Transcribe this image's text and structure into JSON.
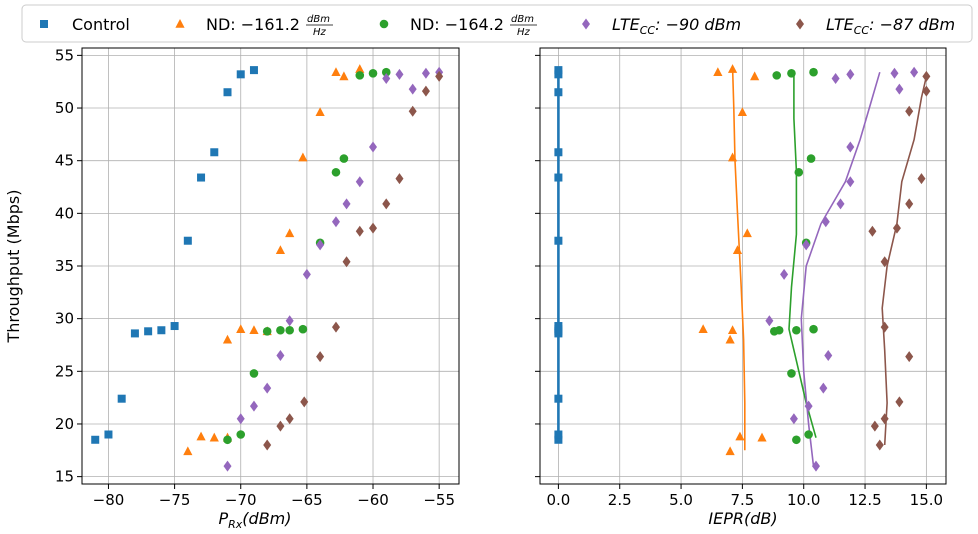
{
  "chart_data": [
    {
      "type": "scatter",
      "panel": "left",
      "xlabel_base": "P",
      "xlabel_sub": "Rx",
      "xlabel_unit": "(dBm)",
      "ylabel": "Throughput (Mbps)",
      "xlim": [
        -82,
        -53.5
      ],
      "ylim": [
        14.3,
        55.7
      ],
      "xticks": [
        -80,
        -75,
        -70,
        -65,
        -60,
        -55
      ],
      "xtick_labels": [
        "−80",
        "−75",
        "−70",
        "−65",
        "−60",
        "−55"
      ],
      "yticks": [
        15,
        20,
        25,
        30,
        35,
        40,
        45,
        50,
        55
      ],
      "ytick_labels": [
        "15",
        "20",
        "25",
        "30",
        "35",
        "40",
        "45",
        "50",
        "55"
      ],
      "grid": true,
      "series": [
        {
          "id": "control",
          "marker": "square",
          "color": "#1f77b4",
          "points": [
            [
              -81,
              18.5
            ],
            [
              -80,
              19.0
            ],
            [
              -79,
              22.4
            ],
            [
              -78,
              28.6
            ],
            [
              -77,
              28.8
            ],
            [
              -76,
              28.9
            ],
            [
              -75,
              29.3
            ],
            [
              -74,
              37.4
            ],
            [
              -73,
              43.4
            ],
            [
              -72,
              45.8
            ],
            [
              -71,
              51.5
            ],
            [
              -70,
              53.2
            ],
            [
              -69,
              53.6
            ]
          ]
        },
        {
          "id": "nd161",
          "marker": "triangle",
          "color": "#ff7f0e",
          "points": [
            [
              -74,
              17.4
            ],
            [
              -73,
              18.8
            ],
            [
              -72,
              18.7
            ],
            [
              -71,
              18.7
            ],
            [
              -71,
              28.0
            ],
            [
              -70,
              29.0
            ],
            [
              -69,
              28.9
            ],
            [
              -68,
              28.8
            ],
            [
              -67,
              36.5
            ],
            [
              -66.3,
              38.1
            ],
            [
              -65.3,
              45.3
            ],
            [
              -64,
              49.6
            ],
            [
              -62.8,
              53.4
            ],
            [
              -62.2,
              53.0
            ],
            [
              -61,
              53.7
            ]
          ]
        },
        {
          "id": "nd164",
          "marker": "circle",
          "color": "#2ca02c",
          "points": [
            [
              -71,
              18.5
            ],
            [
              -70,
              19.0
            ],
            [
              -69,
              24.8
            ],
            [
              -68,
              28.8
            ],
            [
              -67,
              28.9
            ],
            [
              -66.3,
              28.9
            ],
            [
              -65.3,
              29.0
            ],
            [
              -64,
              37.2
            ],
            [
              -62.8,
              43.9
            ],
            [
              -62.2,
              45.2
            ],
            [
              -61,
              53.1
            ],
            [
              -60,
              53.3
            ],
            [
              -59,
              53.4
            ]
          ]
        },
        {
          "id": "lte90",
          "marker": "diamond",
          "color": "#9467bd",
          "points": [
            [
              -71,
              16.0
            ],
            [
              -70,
              20.5
            ],
            [
              -69,
              21.7
            ],
            [
              -68,
              23.4
            ],
            [
              -67,
              26.5
            ],
            [
              -66.3,
              29.8
            ],
            [
              -65,
              34.2
            ],
            [
              -64,
              37.0
            ],
            [
              -62.8,
              39.2
            ],
            [
              -62,
              40.9
            ],
            [
              -61,
              43.0
            ],
            [
              -60,
              46.3
            ],
            [
              -59,
              52.8
            ],
            [
              -58,
              53.2
            ],
            [
              -57,
              51.8
            ],
            [
              -56,
              53.3
            ],
            [
              -55,
              53.4
            ]
          ]
        },
        {
          "id": "lte87",
          "marker": "diamond",
          "color": "#8c564b",
          "points": [
            [
              -68,
              18.0
            ],
            [
              -67,
              19.8
            ],
            [
              -66.3,
              20.5
            ],
            [
              -65.2,
              22.1
            ],
            [
              -64,
              26.4
            ],
            [
              -62.8,
              29.2
            ],
            [
              -62,
              35.4
            ],
            [
              -61,
              38.3
            ],
            [
              -60,
              38.6
            ],
            [
              -59,
              40.9
            ],
            [
              -58,
              43.3
            ],
            [
              -57,
              49.7
            ],
            [
              -56,
              51.6
            ],
            [
              -55,
              53.0
            ]
          ]
        }
      ]
    },
    {
      "type": "scatter",
      "panel": "right",
      "xlabel": "IEPR(dB)",
      "xlim": [
        -0.75,
        15.8
      ],
      "ylim": [
        14.3,
        55.7
      ],
      "xticks": [
        0,
        2.5,
        5,
        7.5,
        10,
        12.5,
        15
      ],
      "xtick_labels": [
        "0.0",
        "2.5",
        "5.0",
        "7.5",
        "10.0",
        "12.5",
        "15.0"
      ],
      "yticks": [
        15,
        20,
        25,
        30,
        35,
        40,
        45,
        50,
        55
      ],
      "grid": true,
      "series": [
        {
          "id": "control",
          "marker": "square",
          "color": "#1f77b4",
          "points": [
            [
              0,
              18.5
            ],
            [
              0,
              19.0
            ],
            [
              0,
              22.4
            ],
            [
              0,
              28.6
            ],
            [
              0,
              28.8
            ],
            [
              0,
              29.0
            ],
            [
              0,
              29.3
            ],
            [
              0,
              37.4
            ],
            [
              0,
              43.4
            ],
            [
              0,
              45.8
            ],
            [
              0,
              51.5
            ],
            [
              0,
              53.2
            ],
            [
              0,
              53.6
            ]
          ],
          "fit": [
            [
              0,
              18.3
            ],
            [
              0,
              53.6
            ]
          ]
        },
        {
          "id": "nd161",
          "marker": "triangle",
          "color": "#ff7f0e",
          "points": [
            [
              7.0,
              17.4
            ],
            [
              7.4,
              18.8
            ],
            [
              8.3,
              18.7
            ],
            [
              5.9,
              29.0
            ],
            [
              7.0,
              28.0
            ],
            [
              7.1,
              28.9
            ],
            [
              7.3,
              36.5
            ],
            [
              7.7,
              38.1
            ],
            [
              7.1,
              45.3
            ],
            [
              7.5,
              49.6
            ],
            [
              6.5,
              53.4
            ],
            [
              7.1,
              53.7
            ],
            [
              8.0,
              53.0
            ]
          ],
          "fit": [
            [
              7.6,
              17.5
            ],
            [
              7.6,
              22
            ],
            [
              7.55,
              28
            ],
            [
              7.45,
              33
            ],
            [
              7.3,
              40
            ],
            [
              7.2,
              45
            ],
            [
              7.15,
              50
            ],
            [
              7.1,
              53.8
            ]
          ]
        },
        {
          "id": "nd164",
          "marker": "circle",
          "color": "#2ca02c",
          "points": [
            [
              9.7,
              18.5
            ],
            [
              10.2,
              19.0
            ],
            [
              9.5,
              24.8
            ],
            [
              8.8,
              28.8
            ],
            [
              9.0,
              28.9
            ],
            [
              9.7,
              28.9
            ],
            [
              10.4,
              29.0
            ],
            [
              10.1,
              37.2
            ],
            [
              9.8,
              43.9
            ],
            [
              10.3,
              45.2
            ],
            [
              8.9,
              53.1
            ],
            [
              9.5,
              53.3
            ],
            [
              10.4,
              53.4
            ]
          ],
          "fit": [
            [
              10.5,
              18.7
            ],
            [
              10.1,
              22
            ],
            [
              9.7,
              26
            ],
            [
              9.4,
              29
            ],
            [
              9.5,
              33
            ],
            [
              9.7,
              38
            ],
            [
              9.7,
              44
            ],
            [
              9.6,
              49
            ],
            [
              9.6,
              53.3
            ]
          ]
        },
        {
          "id": "lte90",
          "marker": "diamond",
          "color": "#9467bd",
          "points": [
            [
              10.5,
              16.0
            ],
            [
              9.6,
              20.5
            ],
            [
              10.2,
              21.7
            ],
            [
              10.8,
              23.4
            ],
            [
              11.0,
              26.5
            ],
            [
              8.6,
              29.8
            ],
            [
              9.2,
              34.2
            ],
            [
              10.1,
              37.0
            ],
            [
              10.9,
              39.2
            ],
            [
              11.5,
              40.9
            ],
            [
              11.9,
              43.0
            ],
            [
              11.9,
              46.3
            ],
            [
              11.3,
              52.8
            ],
            [
              11.9,
              53.2
            ],
            [
              13.9,
              51.8
            ],
            [
              13.7,
              53.3
            ],
            [
              14.5,
              53.4
            ]
          ],
          "fit": [
            [
              10.4,
              16.0
            ],
            [
              10.2,
              20
            ],
            [
              10.0,
              25
            ],
            [
              9.9,
              30
            ],
            [
              10.1,
              35
            ],
            [
              10.7,
              39
            ],
            [
              11.7,
              43
            ],
            [
              12.3,
              47
            ],
            [
              12.8,
              51
            ],
            [
              13.1,
              53.4
            ]
          ]
        },
        {
          "id": "lte87",
          "marker": "diamond",
          "color": "#8c564b",
          "points": [
            [
              13.1,
              18.0
            ],
            [
              12.9,
              19.8
            ],
            [
              13.3,
              20.5
            ],
            [
              13.9,
              22.1
            ],
            [
              14.3,
              26.4
            ],
            [
              13.3,
              29.2
            ],
            [
              13.3,
              35.4
            ],
            [
              12.8,
              38.3
            ],
            [
              13.8,
              38.6
            ],
            [
              14.3,
              40.9
            ],
            [
              14.8,
              43.3
            ],
            [
              14.3,
              49.7
            ],
            [
              15.0,
              51.6
            ],
            [
              15.0,
              53.0
            ]
          ],
          "fit": [
            [
              13.3,
              18.0
            ],
            [
              13.4,
              22
            ],
            [
              13.3,
              27
            ],
            [
              13.2,
              31
            ],
            [
              13.4,
              35
            ],
            [
              13.8,
              39
            ],
            [
              14.0,
              43
            ],
            [
              14.5,
              47
            ],
            [
              14.8,
              51
            ],
            [
              15.0,
              53.0
            ]
          ]
        }
      ]
    }
  ],
  "legend": {
    "placement": "top",
    "entries": [
      {
        "marker": "square",
        "color": "#1f77b4",
        "label": "Control"
      },
      {
        "marker": "triangle",
        "color": "#ff7f0e",
        "label": "ND: −161.2",
        "frac_num": "dBm",
        "frac_den": "Hz"
      },
      {
        "marker": "circle",
        "color": "#2ca02c",
        "label": "ND: −164.2",
        "frac_num": "dBm",
        "frac_den": "Hz"
      },
      {
        "marker": "diamond",
        "color": "#9467bd",
        "label_base": "LTE",
        "label_sub": "CC",
        "label_rest": ": −90 dBm"
      },
      {
        "marker": "diamond",
        "color": "#8c564b",
        "label_base": "LTE",
        "label_sub": "CC",
        "label_rest": ": −87 dBm"
      }
    ]
  }
}
